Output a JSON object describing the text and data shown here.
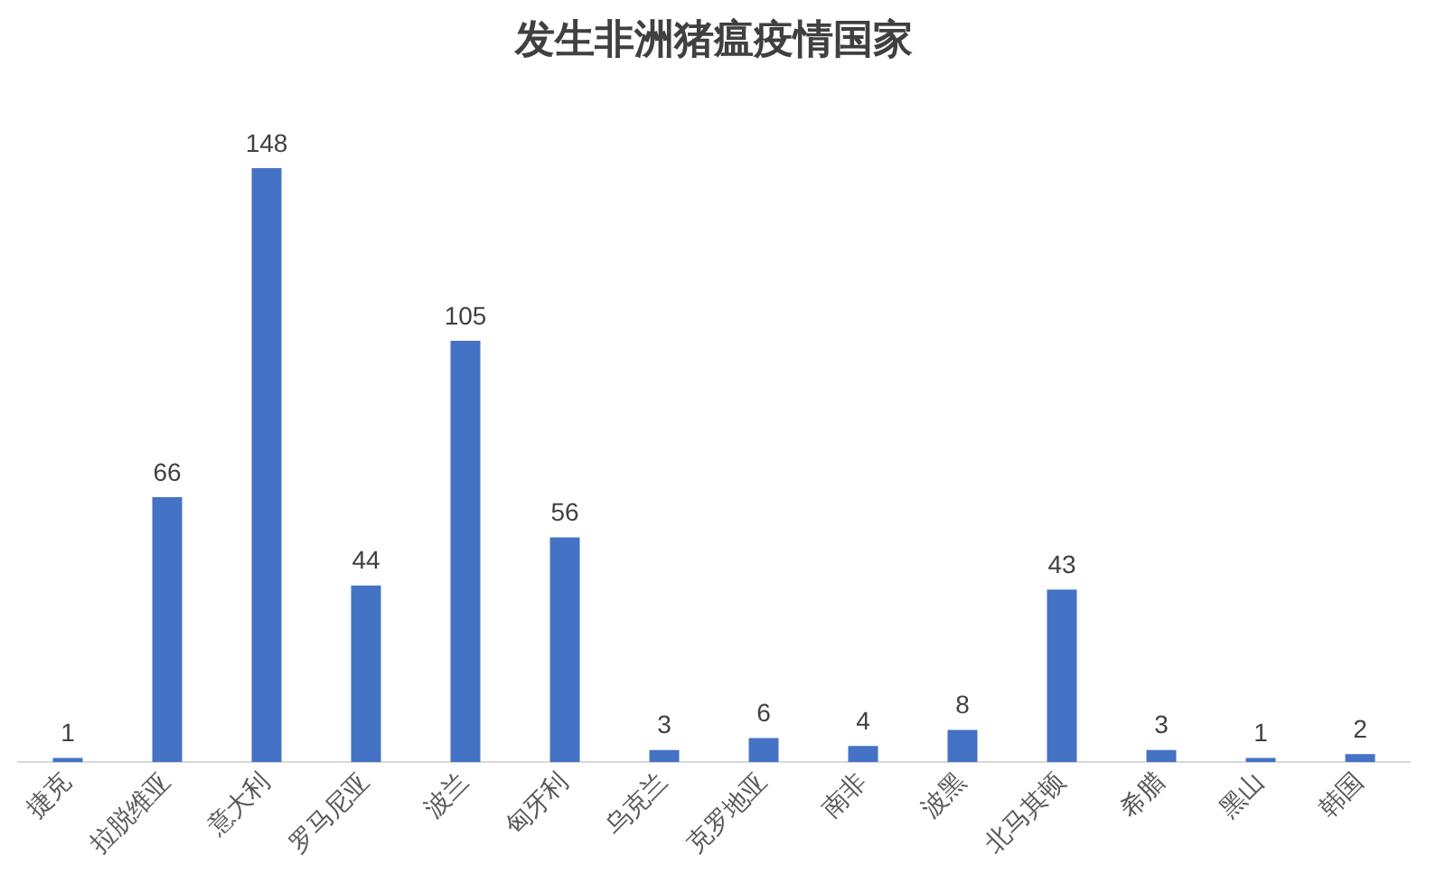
{
  "chart_data": {
    "type": "bar",
    "title": "发生非洲猪瘟疫情国家",
    "categories": [
      "捷克",
      "拉脱维亚",
      "意大利",
      "罗马尼亚",
      "波兰",
      "匈牙利",
      "乌克兰",
      "克罗地亚",
      "南非",
      "波黑",
      "北马其顿",
      "希腊",
      "黑山",
      "韩国"
    ],
    "values": [
      1,
      66,
      148,
      44,
      105,
      56,
      3,
      6,
      4,
      8,
      43,
      3,
      1,
      2
    ],
    "color": "#4472c4",
    "data_labels": true,
    "grid": false,
    "legend": false
  }
}
